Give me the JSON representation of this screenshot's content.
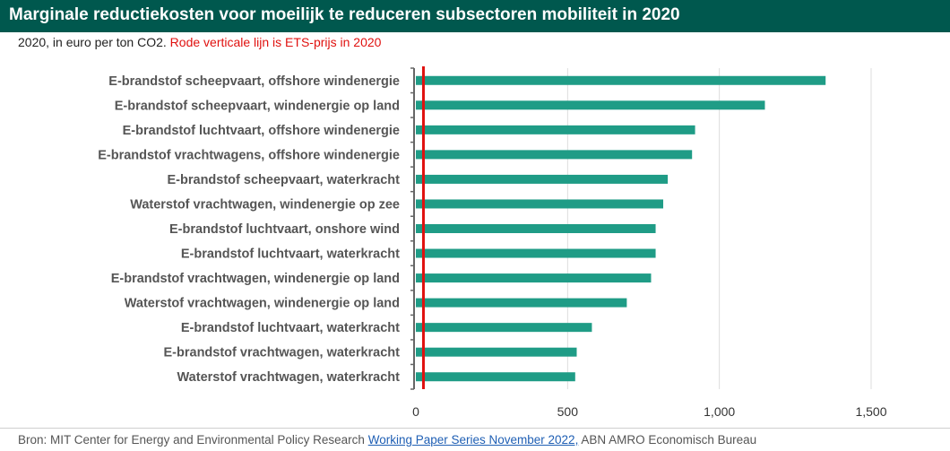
{
  "header": {
    "title": "Marginale reductiekosten voor moeilijk te reduceren subsectoren mobiliteit in 2020",
    "subtitle": "2020, in euro per ton CO2.",
    "subtitle_note": "Rode verticale lijn is ETS-prijs in 2020"
  },
  "footer": {
    "source_prefix": "Bron: MIT Center for Energy and Environmental Policy Research",
    "link_text": "Working Paper Series November 2022,",
    "source_suffix": "ABN AMRO Economisch Bureau"
  },
  "colors": {
    "bar": "#1f9c86",
    "ets_line": "#e0110f",
    "header_bg": "#00584e",
    "grid": "#dddddd",
    "axis": "#666666"
  },
  "chart_data": {
    "type": "bar",
    "orientation": "horizontal",
    "title": "Marginale reductiekosten voor moeilijk te reduceren subsectoren mobiliteit in 2020",
    "subtitle": "2020, in euro per ton CO2. Rode verticale lijn is ETS-prijs in 2020",
    "categories": [
      "E-brandstof scheepvaart, offshore windenergie",
      "E-brandstof scheepvaart, windenergie op land",
      "E-brandstof luchtvaart, offshore windenergie",
      "E-brandstof vrachtwagens, offshore windenergie",
      "E-brandstof scheepvaart, waterkracht",
      "Waterstof vrachtwagen, windenergie op zee",
      "E-brandstof luchtvaart, onshore wind",
      "E-brandstof luchtvaart, waterkracht",
      "E-brandstof vrachtwagen, windenergie op land",
      "Waterstof vrachtwagen, windenergie op land",
      "E-brandstof luchtvaart, waterkracht",
      "E-brandstof vrachtwagen, waterkracht",
      "Waterstof vrachtwagen, waterkracht"
    ],
    "values": [
      1350,
      1150,
      920,
      910,
      830,
      815,
      790,
      790,
      775,
      695,
      580,
      530,
      525
    ],
    "ets_price": 25,
    "xlim": [
      0,
      1500
    ],
    "xticks": [
      0,
      500,
      1000,
      1500
    ],
    "xtick_labels": [
      "0",
      "500",
      "1,000",
      "1,500"
    ],
    "grid": true,
    "legend": "none"
  }
}
